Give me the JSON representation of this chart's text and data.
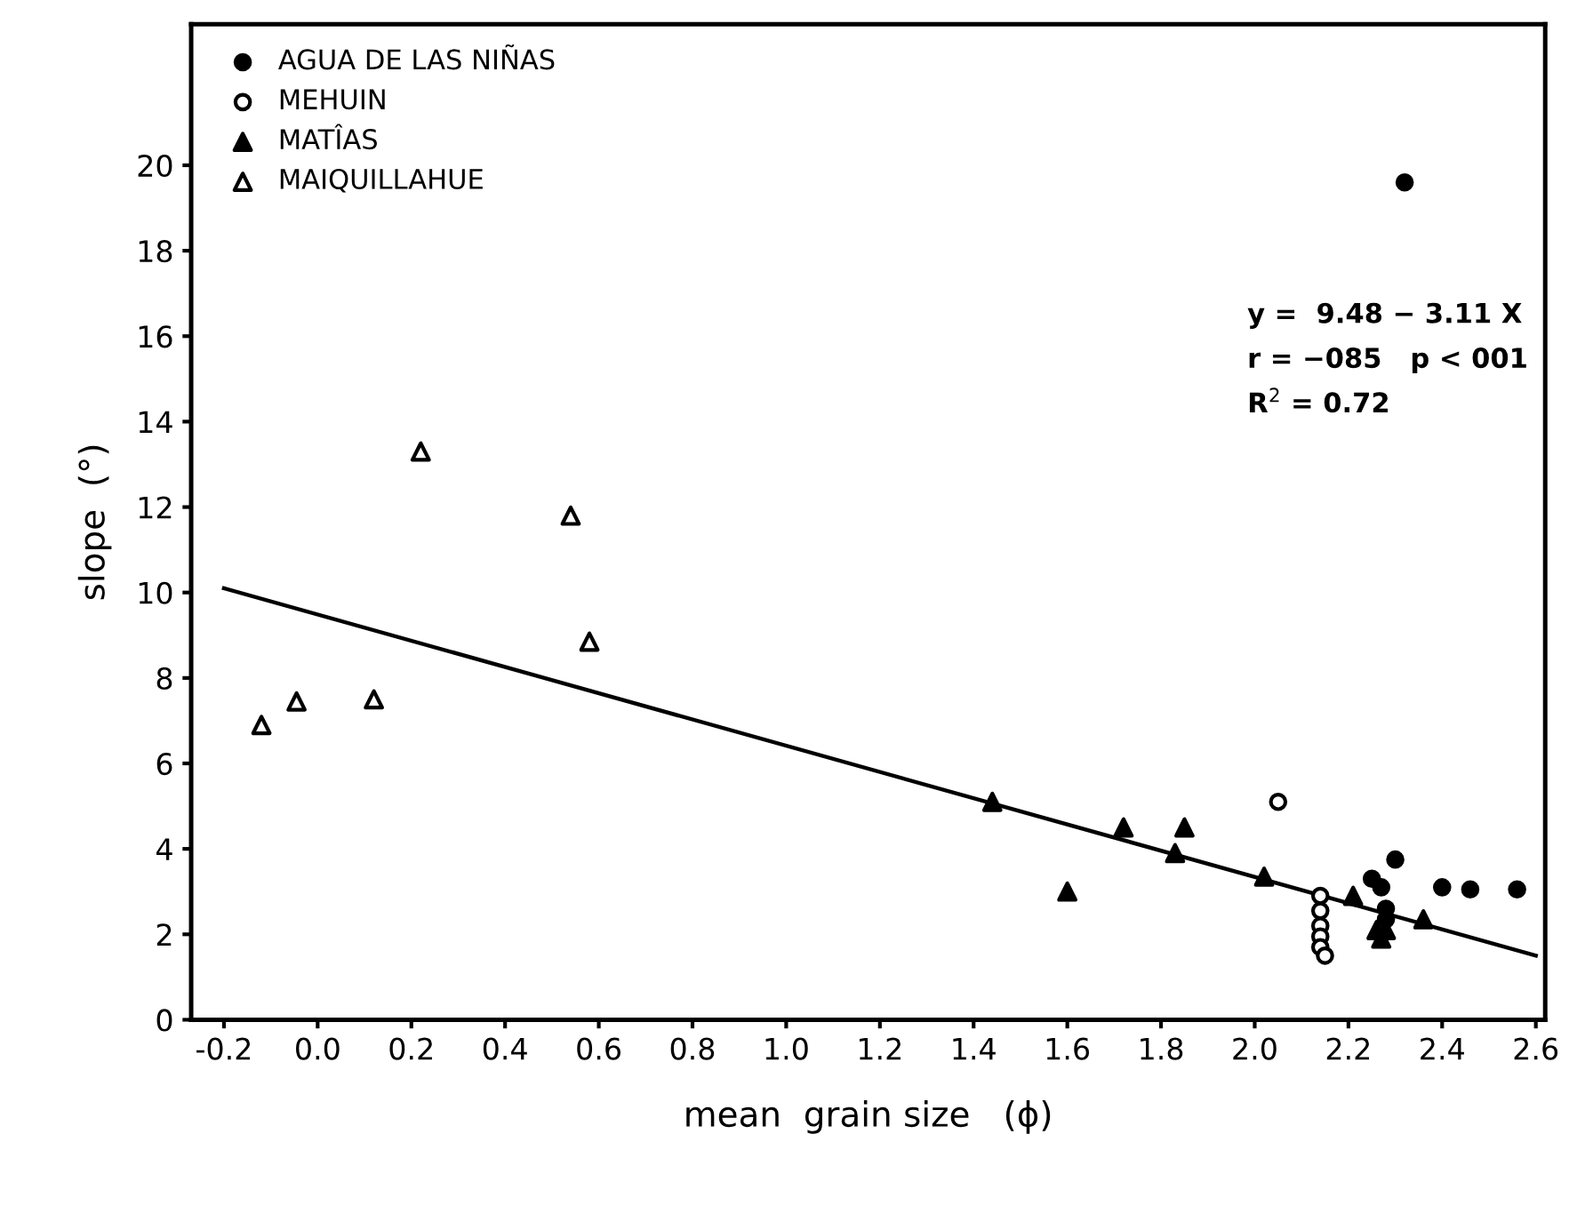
{
  "chart_data": {
    "type": "scatter",
    "xlabel": "mean  grain size   (ϕ)",
    "ylabel": "slope  (°)",
    "xlim": [
      -0.27,
      2.62
    ],
    "ylim": [
      0,
      23.3
    ],
    "xticks": [
      -0.2,
      {
        "value": 0,
        "label": "0.0"
      },
      0.2,
      0.4,
      0.6,
      0.8,
      {
        "value": 1,
        "label": "1.0"
      },
      1.2,
      1.4,
      1.6,
      1.8,
      {
        "value": 2,
        "label": "2.0"
      },
      2.2,
      2.4,
      2.6
    ],
    "yticks": [
      0,
      2,
      4,
      6,
      8,
      10,
      12,
      14,
      16,
      18,
      20
    ],
    "grid": false,
    "legend": "top left",
    "annotations": [
      "y =  9.48 − 3.11 X",
      "r = −085   p < 001",
      "R$^{2}$ = 0.72"
    ],
    "series": [
      {
        "name": "AGUA DE LAS NIÑAS",
        "color": "#000000",
        "marker": "circle",
        "x": [
          2.32,
          2.3,
          2.25,
          2.27,
          2.28,
          2.28,
          2.4,
          2.46,
          2.56
        ],
        "values": [
          19.6,
          3.75,
          3.3,
          3.1,
          2.6,
          2.35,
          3.1,
          3.05,
          3.05
        ]
      },
      {
        "name": "MEHUIN",
        "color": "#ffffff",
        "marker": "circle",
        "x": [
          2.05,
          2.14,
          2.14,
          2.14,
          2.14,
          2.14,
          2.15
        ],
        "values": [
          5.1,
          2.9,
          2.55,
          2.2,
          1.95,
          1.7,
          1.5
        ]
      },
      {
        "name": "MATÎAS",
        "color": "#000000",
        "marker": "triangle",
        "x": [
          1.44,
          1.6,
          1.72,
          1.83,
          1.85,
          2.02,
          2.21,
          2.36,
          2.26,
          2.27,
          2.28
        ],
        "values": [
          5.1,
          3.0,
          4.5,
          3.9,
          4.5,
          3.35,
          2.9,
          2.35,
          2.1,
          1.9,
          2.1
        ]
      },
      {
        "name": "MAIQUILLAHUE",
        "color": "#ffffff",
        "marker": "triangle",
        "x": [
          -0.12,
          -0.045,
          0.12,
          0.22,
          0.54,
          0.58
        ],
        "values": [
          6.9,
          7.45,
          7.5,
          13.3,
          11.8,
          8.85
        ]
      },
      {
        "type": "line",
        "color": "#000000",
        "x": [
          -0.2,
          2.6
        ],
        "values": [
          10.1,
          1.5
        ]
      }
    ]
  }
}
